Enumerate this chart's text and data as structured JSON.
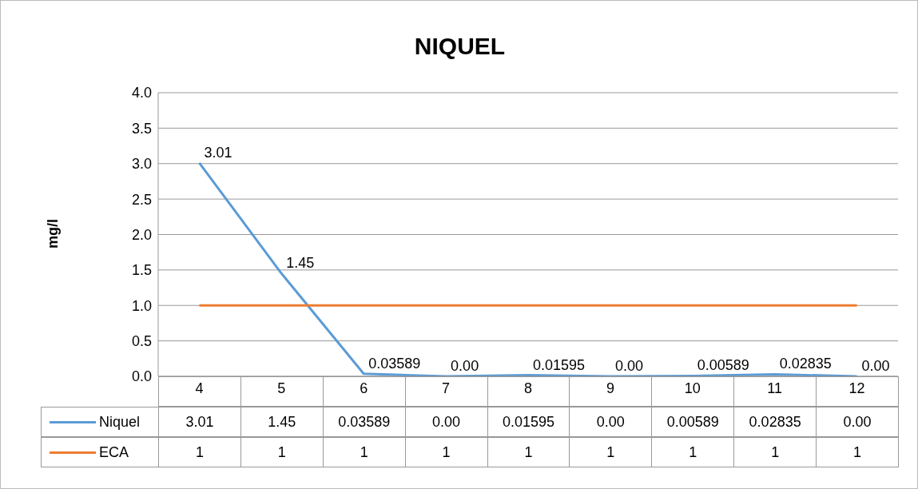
{
  "chart_data": {
    "type": "line",
    "title": "NIQUEL",
    "ylabel": "mg/l",
    "categories": [
      "4",
      "5",
      "6",
      "7",
      "8",
      "9",
      "10",
      "11",
      "12"
    ],
    "series": [
      {
        "name": "Niquel",
        "color": "#5b9bd5",
        "values": [
          3.01,
          1.45,
          0.03589,
          0,
          0.01595,
          0,
          0.00589,
          0.02835,
          0
        ],
        "value_labels": [
          "3.01",
          "1.45",
          "0.03589",
          "0.00",
          "0.01595",
          "0.00",
          "0.00589",
          "0.02835",
          "0.00"
        ]
      },
      {
        "name": "ECA",
        "color": "#ed7d31",
        "values": [
          1,
          1,
          1,
          1,
          1,
          1,
          1,
          1,
          1
        ],
        "value_labels": [
          "1",
          "1",
          "1",
          "1",
          "1",
          "1",
          "1",
          "1",
          "1"
        ]
      }
    ],
    "ylim": [
      0,
      4
    ],
    "yticks": [
      {
        "value": 0,
        "label": "0.0"
      },
      {
        "value": 0.5,
        "label": "0.5"
      },
      {
        "value": 1,
        "label": "1.0"
      },
      {
        "value": 1.5,
        "label": "1.5"
      },
      {
        "value": 2,
        "label": "2.0"
      },
      {
        "value": 2.5,
        "label": "2.5"
      },
      {
        "value": 3,
        "label": "3.0"
      },
      {
        "value": 3.5,
        "label": "3.5"
      },
      {
        "value": 4,
        "label": "4.0"
      }
    ],
    "grid": "y",
    "legend": "bottom"
  }
}
